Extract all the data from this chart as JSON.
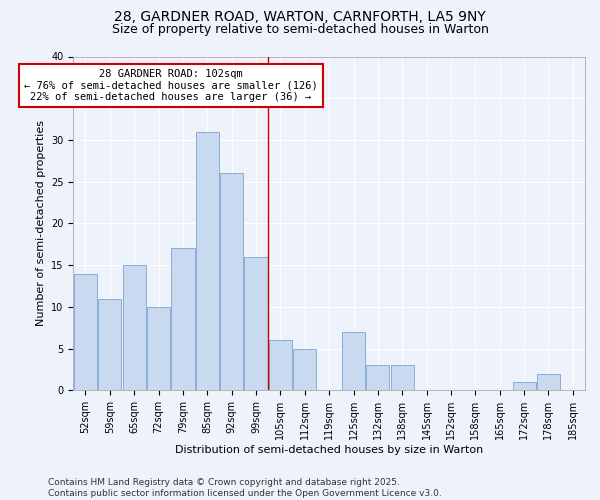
{
  "title": "28, GARDNER ROAD, WARTON, CARNFORTH, LA5 9NY",
  "subtitle": "Size of property relative to semi-detached houses in Warton",
  "xlabel": "Distribution of semi-detached houses by size in Warton",
  "ylabel": "Number of semi-detached properties",
  "categories": [
    "52sqm",
    "59sqm",
    "65sqm",
    "72sqm",
    "79sqm",
    "85sqm",
    "92sqm",
    "99sqm",
    "105sqm",
    "112sqm",
    "119sqm",
    "125sqm",
    "132sqm",
    "138sqm",
    "145sqm",
    "152sqm",
    "158sqm",
    "165sqm",
    "172sqm",
    "178sqm",
    "185sqm"
  ],
  "values": [
    14,
    11,
    15,
    10,
    17,
    31,
    26,
    16,
    6,
    5,
    0,
    7,
    3,
    3,
    0,
    0,
    0,
    0,
    1,
    2,
    0
  ],
  "bar_color": "#c9d9f0",
  "bar_edgecolor": "#8aadd4",
  "vline_bin_idx": 7,
  "vline_bin_lo": 99,
  "vline_bin_hi": 105,
  "vline_value": 102,
  "annotation_title": "28 GARDNER ROAD: 102sqm",
  "annotation_line1": "← 76% of semi-detached houses are smaller (126)",
  "annotation_line2": "22% of semi-detached houses are larger (36) →",
  "annotation_box_color": "#ffffff",
  "annotation_box_edgecolor": "#cc0000",
  "vline_color": "#cc0000",
  "ylim": [
    0,
    40
  ],
  "yticks": [
    0,
    5,
    10,
    15,
    20,
    25,
    30,
    35,
    40
  ],
  "footnote": "Contains HM Land Registry data © Crown copyright and database right 2025.\nContains public sector information licensed under the Open Government Licence v3.0.",
  "background_color": "#eef2fb",
  "grid_color": "#ffffff",
  "title_fontsize": 10,
  "subtitle_fontsize": 9,
  "axis_label_fontsize": 8,
  "tick_fontsize": 7,
  "annotation_fontsize": 7.5,
  "footnote_fontsize": 6.5
}
